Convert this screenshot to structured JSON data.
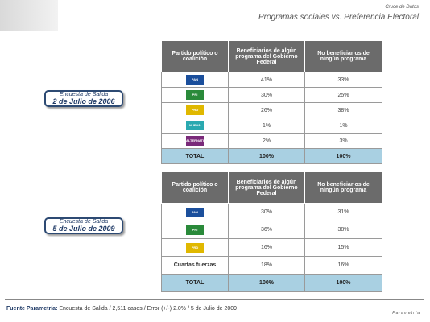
{
  "header": {
    "kicker": "Cruce de Datos",
    "title": "Programas sociales vs. Preferencia Electoral"
  },
  "panels": [
    {
      "survey": "Encuesta de Salida",
      "date": "2 de Julio de 2006",
      "table": {
        "columns": [
          "Partido político o coalición",
          "Beneficiarios de algún programa del Gobierno Federal",
          "No beneficiarios de ningún programa"
        ],
        "rows": [
          {
            "logo": "PAN",
            "cells": [
              "41%",
              "33%"
            ]
          },
          {
            "logo": "PRI",
            "cells": [
              "30%",
              "25%"
            ]
          },
          {
            "logo": "PRD",
            "cells": [
              "26%",
              "38%"
            ]
          },
          {
            "logo": "NUEVA ALIANZA",
            "cells": [
              "1%",
              "1%"
            ]
          },
          {
            "logo": "ALTERNATIVA",
            "cells": [
              "2%",
              "3%"
            ]
          }
        ],
        "total": [
          "TOTAL",
          "100%",
          "100%"
        ]
      }
    },
    {
      "survey": "Encuesta de Salida",
      "date": "5 de Julio de 2009",
      "table": {
        "columns": [
          "Partido político o coalición",
          "Beneficiarios de algún programa del Gobierno Federal",
          "No beneficiarios de ningún programa"
        ],
        "rows": [
          {
            "logo": "PAN",
            "cells": [
              "30%",
              "31%"
            ]
          },
          {
            "logo": "PRI",
            "cells": [
              "36%",
              "38%"
            ]
          },
          {
            "logo": "PRD",
            "cells": [
              "16%",
              "15%"
            ]
          },
          {
            "label": "Cuartas fuerzas",
            "cells": [
              "18%",
              "16%"
            ]
          }
        ],
        "total": [
          "TOTAL",
          "100%",
          "100%"
        ]
      }
    }
  ],
  "footer": {
    "source_label": "Fuente Parametría:",
    "source_text": "Encuesta de Salida / 2,511 casos / Error (+/-) 2.0% / 5 de Julio de 2009",
    "brand": "Parametría"
  }
}
